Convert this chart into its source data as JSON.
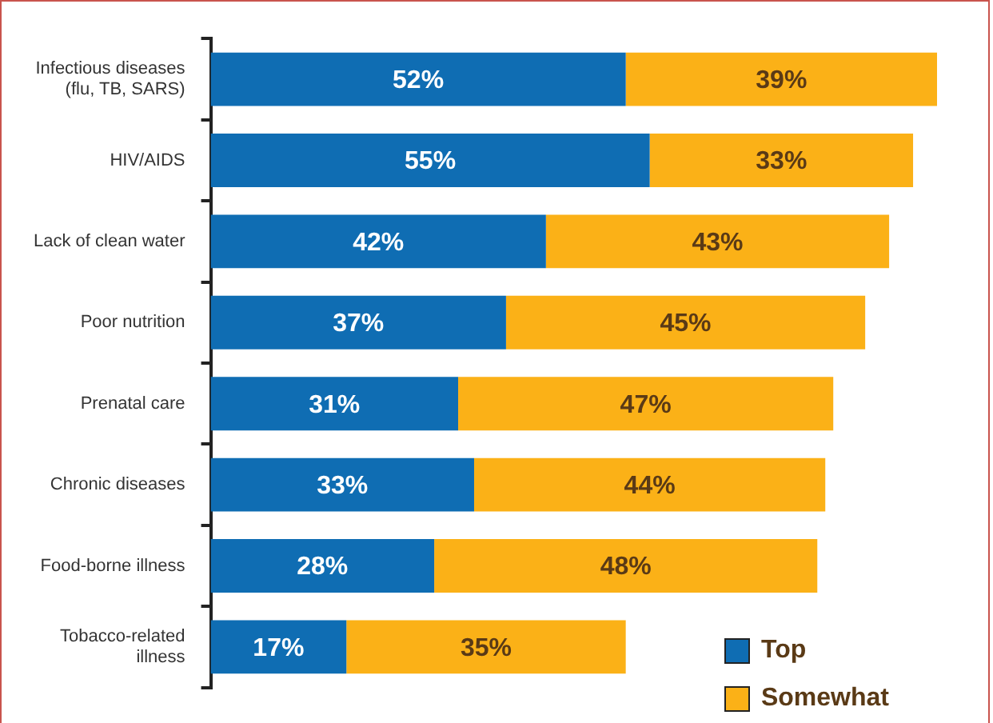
{
  "chart_data": {
    "type": "bar",
    "orientation": "horizontal",
    "stacked": true,
    "legend": "bottom right",
    "categories": [
      "Infectious diseases (flu, TB, SARS)",
      "HIV/AIDS",
      "Lack of clean water",
      "Poor nutrition",
      "Prenatal care",
      "Chronic diseases",
      "Food-borne illness",
      "Tobacco-related illness"
    ],
    "series": [
      {
        "name": "Top",
        "color": "#0f6db3",
        "values": [
          52,
          55,
          42,
          37,
          31,
          33,
          28,
          17
        ],
        "value_labels": [
          "52%",
          "55%",
          "42%",
          "37%",
          "31%",
          "33%",
          "28%",
          "17%"
        ]
      },
      {
        "name": "Somewhat",
        "color": "#fbb117",
        "values": [
          39,
          33,
          43,
          45,
          47,
          44,
          48,
          35
        ],
        "value_labels": [
          "39%",
          "33%",
          "43%",
          "45%",
          "47%",
          "44%",
          "48%",
          "35%"
        ]
      }
    ]
  }
}
